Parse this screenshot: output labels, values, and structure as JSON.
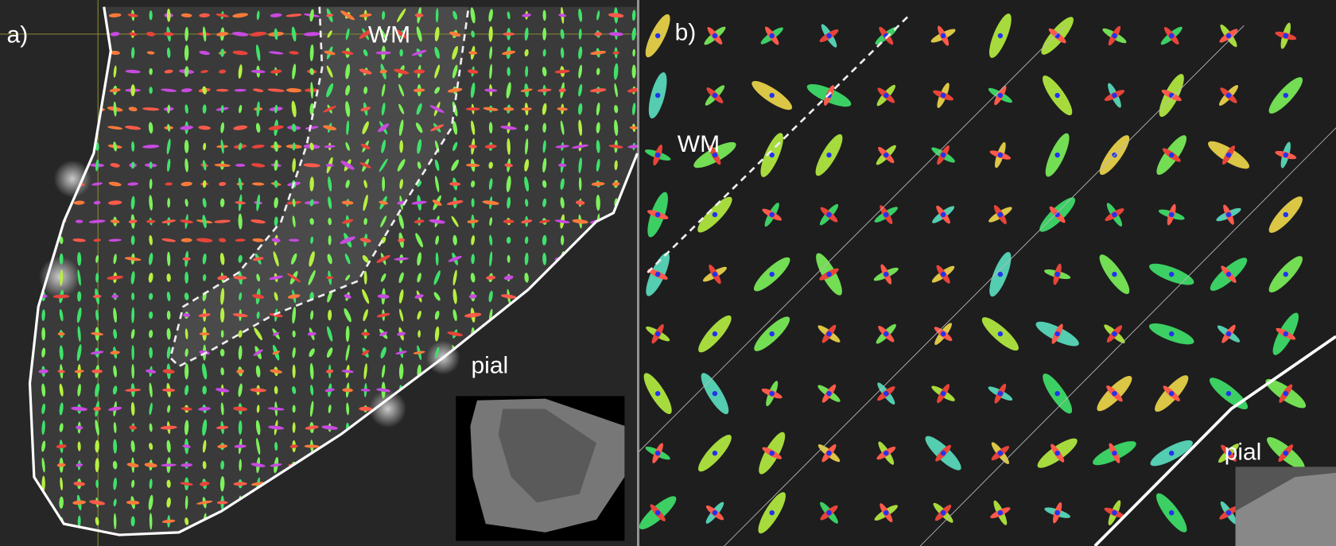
{
  "panels": [
    {
      "label": "a)",
      "regions": [
        "WM",
        "pial"
      ]
    },
    {
      "label": "b)",
      "regions": [
        "WM",
        "pial"
      ]
    }
  ]
}
